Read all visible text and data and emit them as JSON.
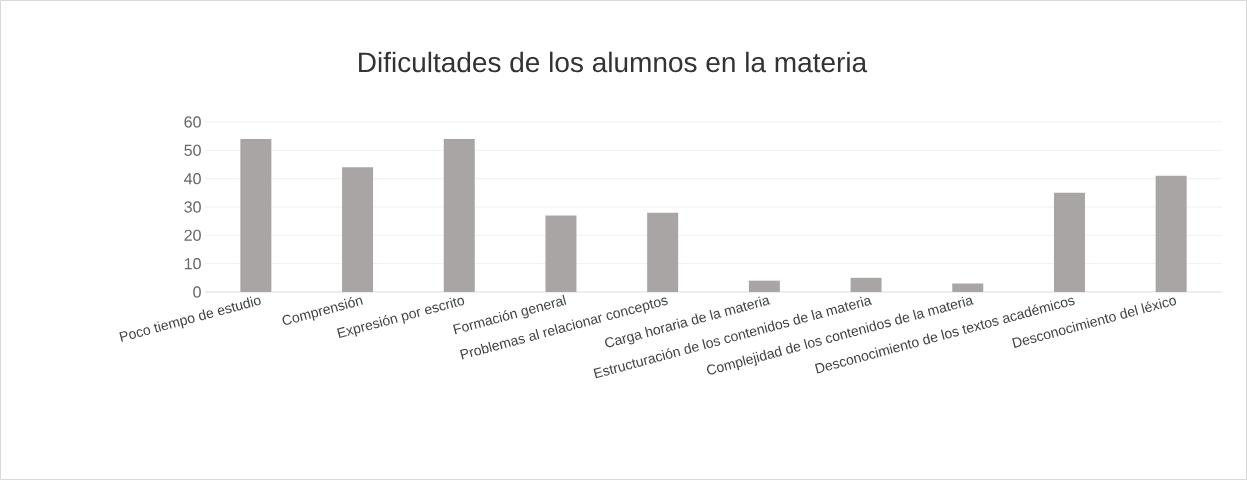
{
  "chart_data": {
    "type": "bar",
    "title": "Dificultades de los alumnos en la materia",
    "categories": [
      "Poco tiempo de estudio",
      "Comprensión",
      "Expresión por escrito",
      "Formación general",
      "Problemas al relacionar conceptos",
      "Carga horaria de la materia",
      "Estructuración de los contenidos de la materia",
      "Complejidad de los contenidos de la materia",
      "Desconocimiento de los textos académicos",
      "Desconocimiento del léxico"
    ],
    "values": [
      54,
      44,
      54,
      27,
      28,
      4,
      5,
      3,
      35,
      41
    ],
    "color": "#aaa5a5",
    "ylim": [
      0,
      60
    ],
    "yticks": [
      0,
      10,
      20,
      30,
      40,
      50,
      60
    ],
    "grid": "y"
  }
}
